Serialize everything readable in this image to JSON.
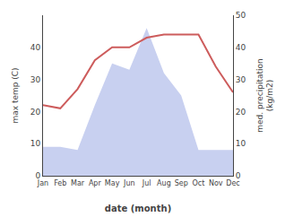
{
  "chart_data": {
    "type": "line",
    "categories": [
      "Jan",
      "Feb",
      "Mar",
      "Apr",
      "May",
      "Jun",
      "Jul",
      "Aug",
      "Sep",
      "Oct",
      "Nov",
      "Dec"
    ],
    "series": [
      {
        "type": "line",
        "color": "#cd5c5c",
        "values": [
          22,
          21,
          27,
          36,
          40,
          40,
          43,
          44,
          44,
          44,
          34,
          26
        ]
      },
      {
        "type": "area",
        "axis": "y2",
        "color": "#c8d0f0",
        "values": [
          9,
          9,
          8,
          22,
          35,
          33,
          46,
          32,
          25,
          8,
          8,
          8
        ]
      }
    ],
    "xlabel": "date (month)",
    "ylabel": "max temp (C)",
    "y2label": "med. precipitation\n(kg/m2)",
    "ylim": [
      0,
      50
    ],
    "yticks": [
      0,
      10,
      20,
      30,
      40
    ],
    "y2lim": [
      0,
      50
    ],
    "y2ticks": [
      0,
      10,
      20,
      30,
      40,
      50
    ],
    "grid": false
  }
}
